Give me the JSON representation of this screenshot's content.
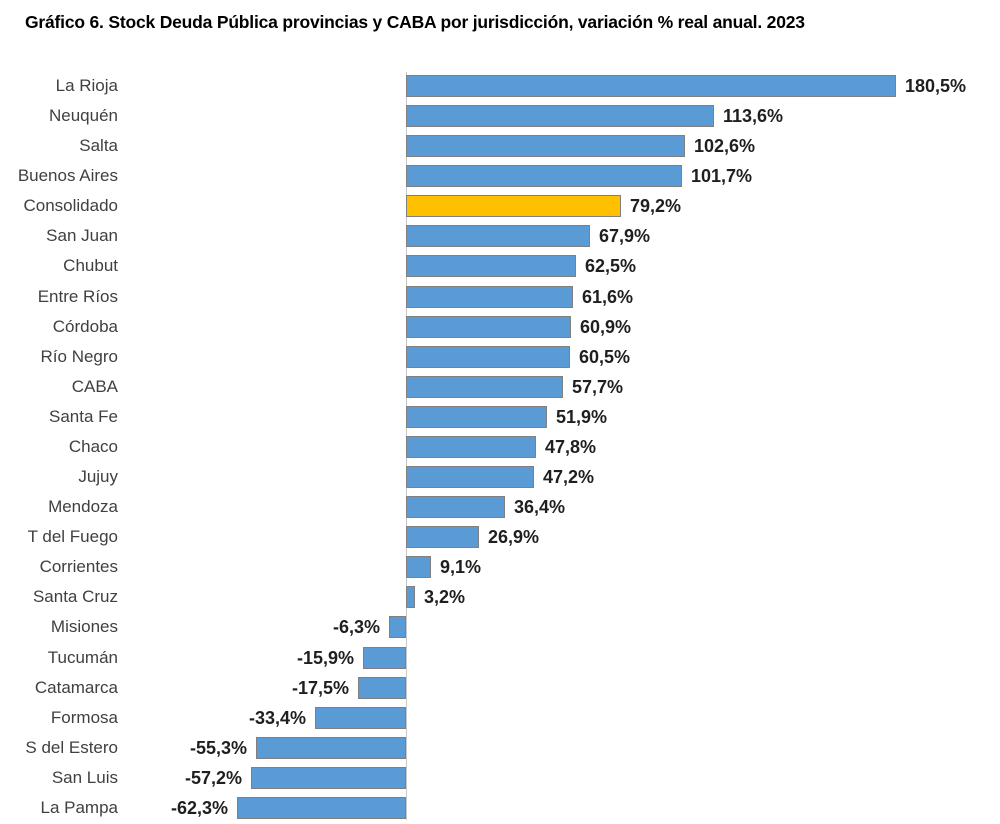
{
  "title": "Gráfico 6. Stock Deuda Pública provincias y CABA por jurisdicción, variación % real anual. 2023",
  "chart_data": {
    "type": "bar",
    "orientation": "horizontal",
    "title": "Gráfico 6. Stock Deuda Pública provincias y CABA por jurisdicción, variación % real anual. 2023",
    "categories": [
      "La Rioja",
      "Neuquén",
      "Salta",
      "Buenos Aires",
      "Consolidado",
      "San Juan",
      "Chubut",
      "Entre Ríos",
      "Córdoba",
      "Río Negro",
      "CABA",
      "Santa Fe",
      "Chaco",
      "Jujuy",
      "Mendoza",
      "T del Fuego",
      "Corrientes",
      "Santa Cruz",
      "Misiones",
      "Tucumán",
      "Catamarca",
      "Formosa",
      "S del Estero",
      "San Luis",
      "La Pampa"
    ],
    "values": [
      180.5,
      113.6,
      102.6,
      101.7,
      79.2,
      67.9,
      62.5,
      61.6,
      60.9,
      60.5,
      57.7,
      51.9,
      47.8,
      47.2,
      36.4,
      26.9,
      9.1,
      3.2,
      -6.3,
      -15.9,
      -17.5,
      -33.4,
      -55.3,
      -57.2,
      -62.3
    ],
    "value_labels": [
      "180,5%",
      "113,6%",
      "102,6%",
      "101,7%",
      "79,2%",
      "67,9%",
      "62,5%",
      "61,6%",
      "60,9%",
      "60,5%",
      "57,7%",
      "51,9%",
      "47,8%",
      "47,2%",
      "36,4%",
      "26,9%",
      "9,1%",
      "3,2%",
      "-6,3%",
      "-15,9%",
      "-17,5%",
      "-33,4%",
      "-55,3%",
      "-57,2%",
      "-62,3%"
    ],
    "highlight_category": "Consolidado",
    "xlabel": "",
    "ylabel": "",
    "xlim": [
      -62.3,
      180.5
    ],
    "grid": false,
    "legend": false,
    "colors": {
      "bar": "#5B9BD5",
      "highlight_bar": "#FFC000",
      "bar_border": "#808080",
      "axis_line": "#c9c9c9",
      "category_label": "#404040",
      "value_label": "#1f1f1f",
      "title": "#000000"
    }
  }
}
